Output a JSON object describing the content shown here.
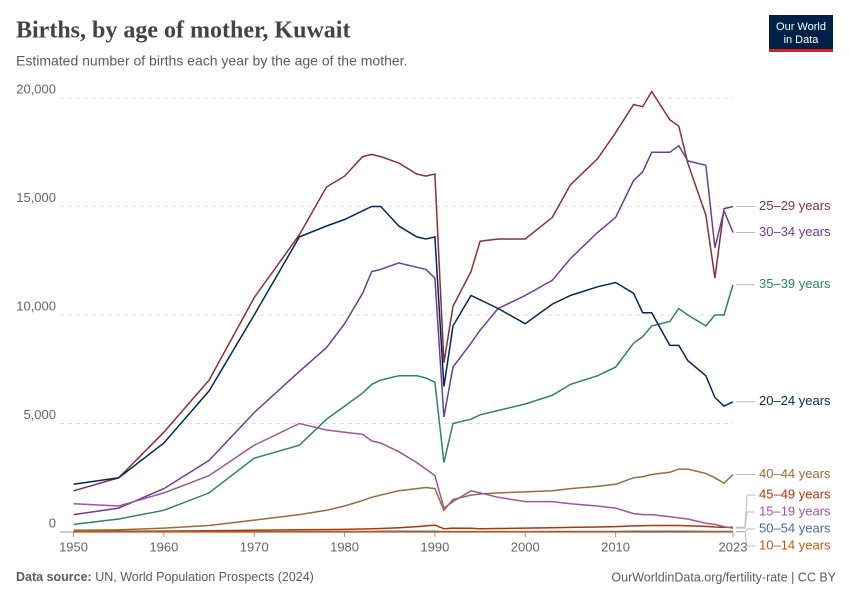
{
  "chart_data": {
    "type": "line",
    "title": "Births, by age of mother, Kuwait",
    "subtitle": "Estimated number of births each year by the age of the mother.",
    "logo": [
      "Our World",
      "in Data"
    ],
    "source_label": "Data source:",
    "source": "UN, World Population Prospects (2024)",
    "credit": "OurWorldinData.org/fertility-rate | CC BY",
    "xlim": [
      1948.5,
      2023
    ],
    "xticks": [
      1950,
      1960,
      1970,
      1980,
      1990,
      2000,
      2010,
      2023
    ],
    "ylim": [
      0,
      20000
    ],
    "yticks": [
      0,
      {
        "value": 5000,
        "label": "5,000"
      },
      {
        "value": 10000,
        "label": "10,000"
      },
      {
        "value": 15000,
        "label": "15,000"
      },
      {
        "value": 20000,
        "label": "20,000"
      }
    ],
    "grid": true,
    "x": [
      1950,
      1955,
      1960,
      1965,
      1970,
      1975,
      1978,
      1980,
      1982,
      1983,
      1984,
      1986,
      1988,
      1989,
      1990,
      1991,
      1992,
      1994,
      1995,
      1997,
      2000,
      2003,
      2005,
      2008,
      2010,
      2012,
      2013,
      2014,
      2016,
      2017,
      2018,
      2020,
      2021,
      2022,
      2023
    ],
    "series": [
      {
        "name": "25–29 years",
        "color": "#883039",
        "values": [
          1900,
          2500,
          4600,
          7000,
          10800,
          13700,
          15900,
          16400,
          17300,
          17400,
          17300,
          17000,
          16500,
          16400,
          16500,
          7800,
          10400,
          12000,
          13400,
          13500,
          13500,
          14500,
          16000,
          17200,
          18400,
          19700,
          19600,
          20300,
          19000,
          18700,
          17000,
          14600,
          11700,
          14900,
          15000
        ]
      },
      {
        "name": "30–34 years",
        "color": "#6d3e91",
        "values": [
          800,
          1100,
          2000,
          3300,
          5500,
          7400,
          8500,
          9600,
          11000,
          12000,
          12100,
          12400,
          12200,
          12100,
          11700,
          5300,
          7600,
          8700,
          9300,
          10300,
          10900,
          11600,
          12600,
          13800,
          14500,
          16200,
          16600,
          17500,
          17500,
          17800,
          17100,
          16900,
          13100,
          14800,
          13800
        ]
      },
      {
        "name": "35–39 years",
        "color": "#2c8465",
        "values": [
          350,
          600,
          1000,
          1800,
          3400,
          4000,
          5200,
          5800,
          6400,
          6800,
          7000,
          7200,
          7200,
          7100,
          6900,
          3200,
          5000,
          5200,
          5400,
          5600,
          5900,
          6300,
          6800,
          7200,
          7600,
          8700,
          9000,
          9500,
          9700,
          10300,
          10000,
          9500,
          10000,
          10000,
          11400
        ]
      },
      {
        "name": "20–24 years",
        "color": "#00295b",
        "values": [
          2200,
          2500,
          4100,
          6500,
          10000,
          13600,
          14100,
          14400,
          14800,
          15000,
          15000,
          14100,
          13600,
          13500,
          13600,
          6700,
          9500,
          10900,
          10700,
          10300,
          9600,
          10500,
          10900,
          11300,
          11500,
          11000,
          10100,
          10100,
          8600,
          8600,
          7900,
          7200,
          6200,
          5800,
          6000
        ]
      },
      {
        "name": "40–44 years",
        "color": "#996d39",
        "values": [
          80,
          100,
          180,
          300,
          550,
          800,
          1000,
          1200,
          1450,
          1600,
          1700,
          1900,
          2000,
          2050,
          2000,
          1000,
          1500,
          1700,
          1750,
          1800,
          1850,
          1900,
          2000,
          2100,
          2200,
          2500,
          2550,
          2650,
          2750,
          2900,
          2900,
          2700,
          2500,
          2250,
          2650
        ]
      },
      {
        "name": "45–49 years",
        "color": "#b13507",
        "values": [
          20,
          30,
          40,
          60,
          80,
          100,
          110,
          120,
          140,
          150,
          160,
          200,
          250,
          280,
          320,
          150,
          180,
          170,
          150,
          160,
          180,
          200,
          210,
          230,
          250,
          280,
          290,
          300,
          300,
          300,
          280,
          260,
          230,
          210,
          220
        ]
      },
      {
        "name": "15–19 years",
        "color": "#a2559c",
        "values": [
          1300,
          1200,
          1800,
          2600,
          4000,
          5000,
          4700,
          4600,
          4500,
          4200,
          4100,
          3700,
          3200,
          2900,
          2600,
          1100,
          1400,
          1900,
          1800,
          1600,
          1400,
          1400,
          1300,
          1200,
          1100,
          850,
          800,
          800,
          700,
          650,
          600,
          400,
          350,
          250,
          180
        ]
      },
      {
        "name": "50–54 years",
        "color": "#4c6a9c",
        "values": [
          10,
          10,
          15,
          15,
          20,
          20,
          20,
          25,
          25,
          25,
          30,
          30,
          30,
          30,
          35,
          20,
          20,
          20,
          20,
          20,
          20,
          25,
          25,
          25,
          25,
          30,
          30,
          30,
          30,
          30,
          30,
          25,
          25,
          25,
          25
        ]
      },
      {
        "name": "10–14 years",
        "color": "#be5915",
        "values": [
          5,
          5,
          5,
          5,
          5,
          5,
          5,
          5,
          5,
          5,
          5,
          5,
          5,
          5,
          5,
          3,
          3,
          3,
          3,
          3,
          3,
          3,
          3,
          3,
          3,
          3,
          3,
          3,
          3,
          3,
          3,
          3,
          3,
          3,
          3
        ]
      }
    ]
  }
}
